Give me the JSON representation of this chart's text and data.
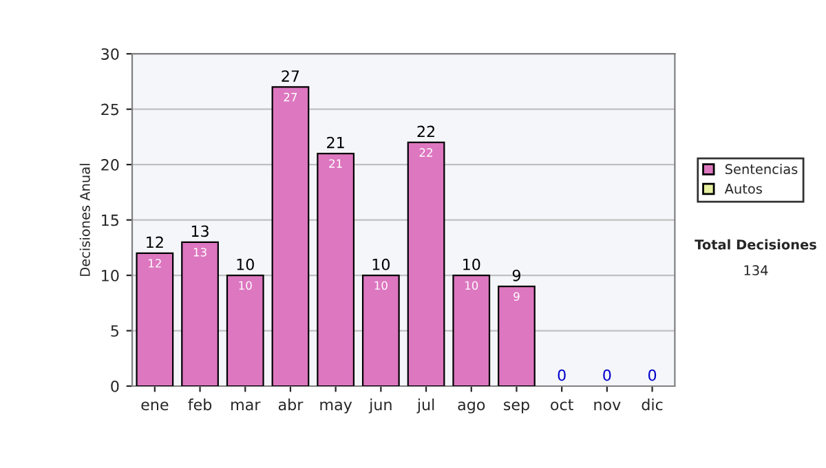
{
  "chart_data": {
    "type": "bar",
    "stacked": true,
    "ylabel": "Decisiones Anual",
    "categories": [
      "ene",
      "feb",
      "mar",
      "abr",
      "may",
      "jun",
      "jul",
      "ago",
      "sep",
      "oct",
      "nov",
      "dic"
    ],
    "series": [
      {
        "name": "Sentencias",
        "color": "#dd77c0",
        "values": [
          12,
          13,
          10,
          27,
          21,
          10,
          22,
          10,
          9,
          0,
          0,
          0
        ],
        "value_labels": [
          "12",
          "13",
          "10",
          "27",
          "21",
          "10",
          "22",
          "10",
          "9",
          null,
          null,
          null
        ]
      },
      {
        "name": "Autos",
        "color": "#e8f0a0",
        "values": [
          0,
          0,
          0,
          0,
          0,
          0,
          0,
          0,
          0,
          0,
          0,
          0
        ]
      }
    ],
    "totals": [
      "12",
      "13",
      "10",
      "27",
      "21",
      "10",
      "22",
      "10",
      "9",
      "0",
      "0",
      "0"
    ],
    "ylim": [
      0,
      30
    ],
    "yticks": [
      0,
      5,
      10,
      15,
      20,
      25,
      30
    ],
    "grid": "y",
    "legend": "right",
    "annotations": [
      "Total Decisiones",
      "134"
    ]
  }
}
